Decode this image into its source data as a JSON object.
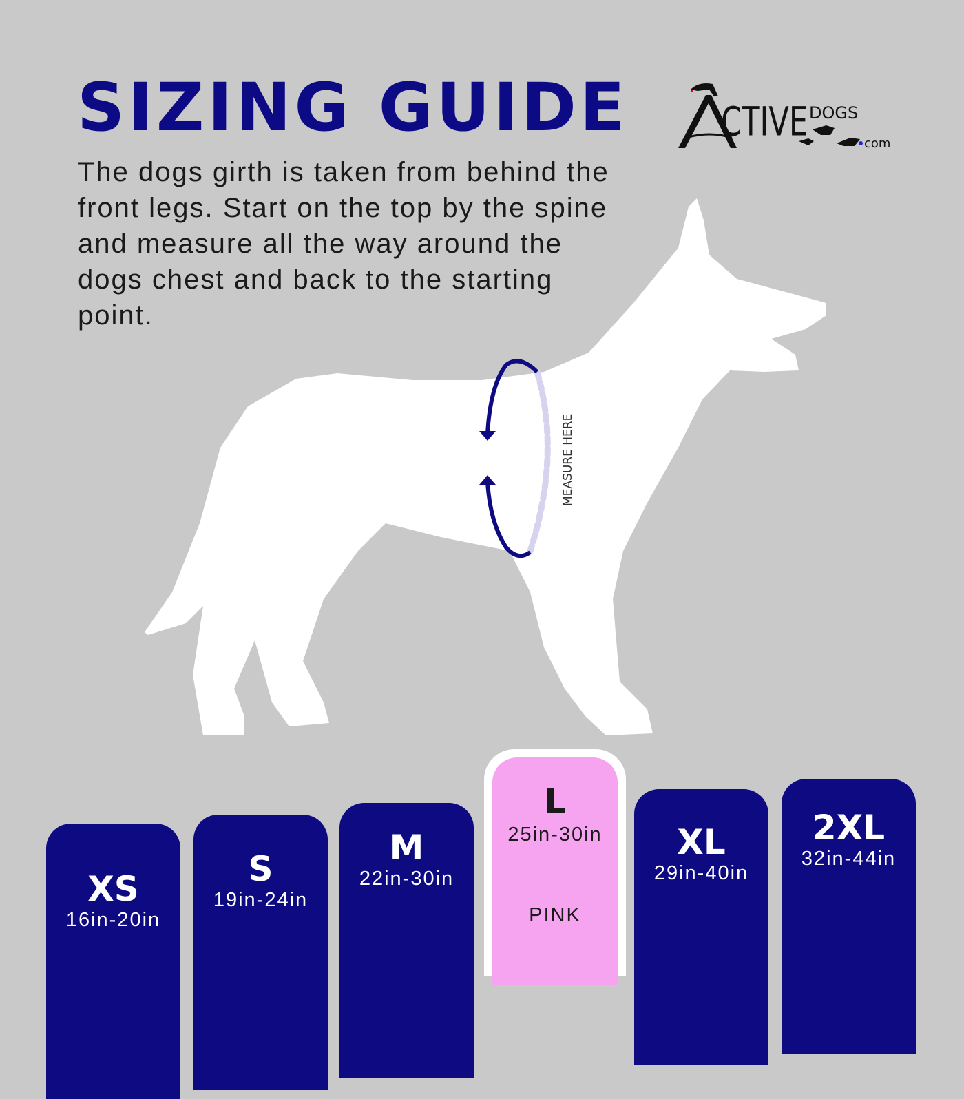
{
  "title": "SIZING GUIDE",
  "description": "The dogs girth is taken from behind the front legs. Start on the top by the spine and measure all the way around the dogs chest and back to the starting point.",
  "logo": {
    "text": "ACTIVEDOGS.com"
  },
  "measure_label": "MEASURE HERE",
  "colors": {
    "background": "#c9c9c9",
    "navy": "#0d0a82",
    "pink": "#f7a4f0",
    "measure_dots": "#d6d3ee"
  },
  "sizes": [
    {
      "size": "XS",
      "range": "16in-20in"
    },
    {
      "size": "S",
      "range": "19in-24in"
    },
    {
      "size": "M",
      "range": "22in-30in"
    },
    {
      "size": "L",
      "range": "25in-30in",
      "color": "PINK",
      "highlighted": true
    },
    {
      "size": "XL",
      "range": "29in-40in"
    },
    {
      "size": "2XL",
      "range": "32in-44in"
    }
  ]
}
